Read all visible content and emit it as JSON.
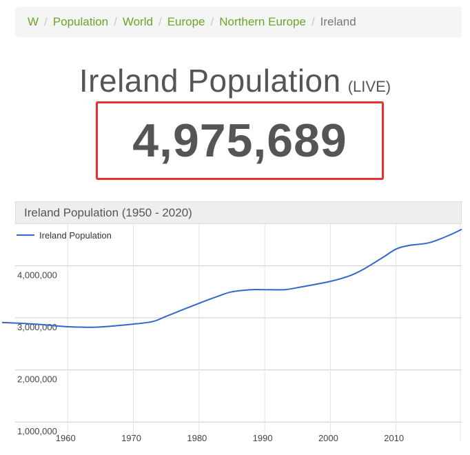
{
  "breadcrumb": {
    "items": [
      "W",
      "Population",
      "World",
      "Europe",
      "Northern Europe"
    ],
    "current": "Ireland",
    "separator": "/"
  },
  "page": {
    "title": "Ireland Population",
    "live_label": "(LIVE)",
    "live_count": "4,975,689"
  },
  "chart_header": "Ireland Population (1950 - 2020)",
  "colors": {
    "link": "#6aa52a",
    "line": "#3366cc",
    "counter_border": "#e8302a"
  },
  "chart_data": {
    "type": "line",
    "title": "",
    "series": [
      {
        "name": "Ireland Population",
        "x": [
          1950,
          1955,
          1960,
          1963,
          1965,
          1970,
          1973,
          1975,
          1980,
          1983,
          1985,
          1988,
          1990,
          1993,
          1995,
          2000,
          2003,
          2005,
          2008,
          2010,
          2012,
          2015,
          2018,
          2020
        ],
        "values": [
          2910000,
          2880000,
          2830000,
          2820000,
          2825000,
          2880000,
          2930000,
          3030000,
          3280000,
          3420000,
          3500000,
          3540000,
          3540000,
          3540000,
          3580000,
          3700000,
          3810000,
          3930000,
          4160000,
          4320000,
          4390000,
          4440000,
          4580000,
          4700000
        ]
      }
    ],
    "yticks": [
      "1,000,000",
      "2,000,000",
      "3,000,000",
      "4,000,000"
    ],
    "ytick_values": [
      1000000,
      2000000,
      3000000,
      4000000
    ],
    "xticks": [
      "1960",
      "1970",
      "1980",
      "1990",
      "2000",
      "2010"
    ],
    "xtick_values": [
      1960,
      1970,
      1980,
      1990,
      2000,
      2010
    ],
    "xlim": [
      1952,
      2020
    ],
    "ylim": [
      500000,
      4800000
    ],
    "legend": "top-left",
    "grid": true
  }
}
